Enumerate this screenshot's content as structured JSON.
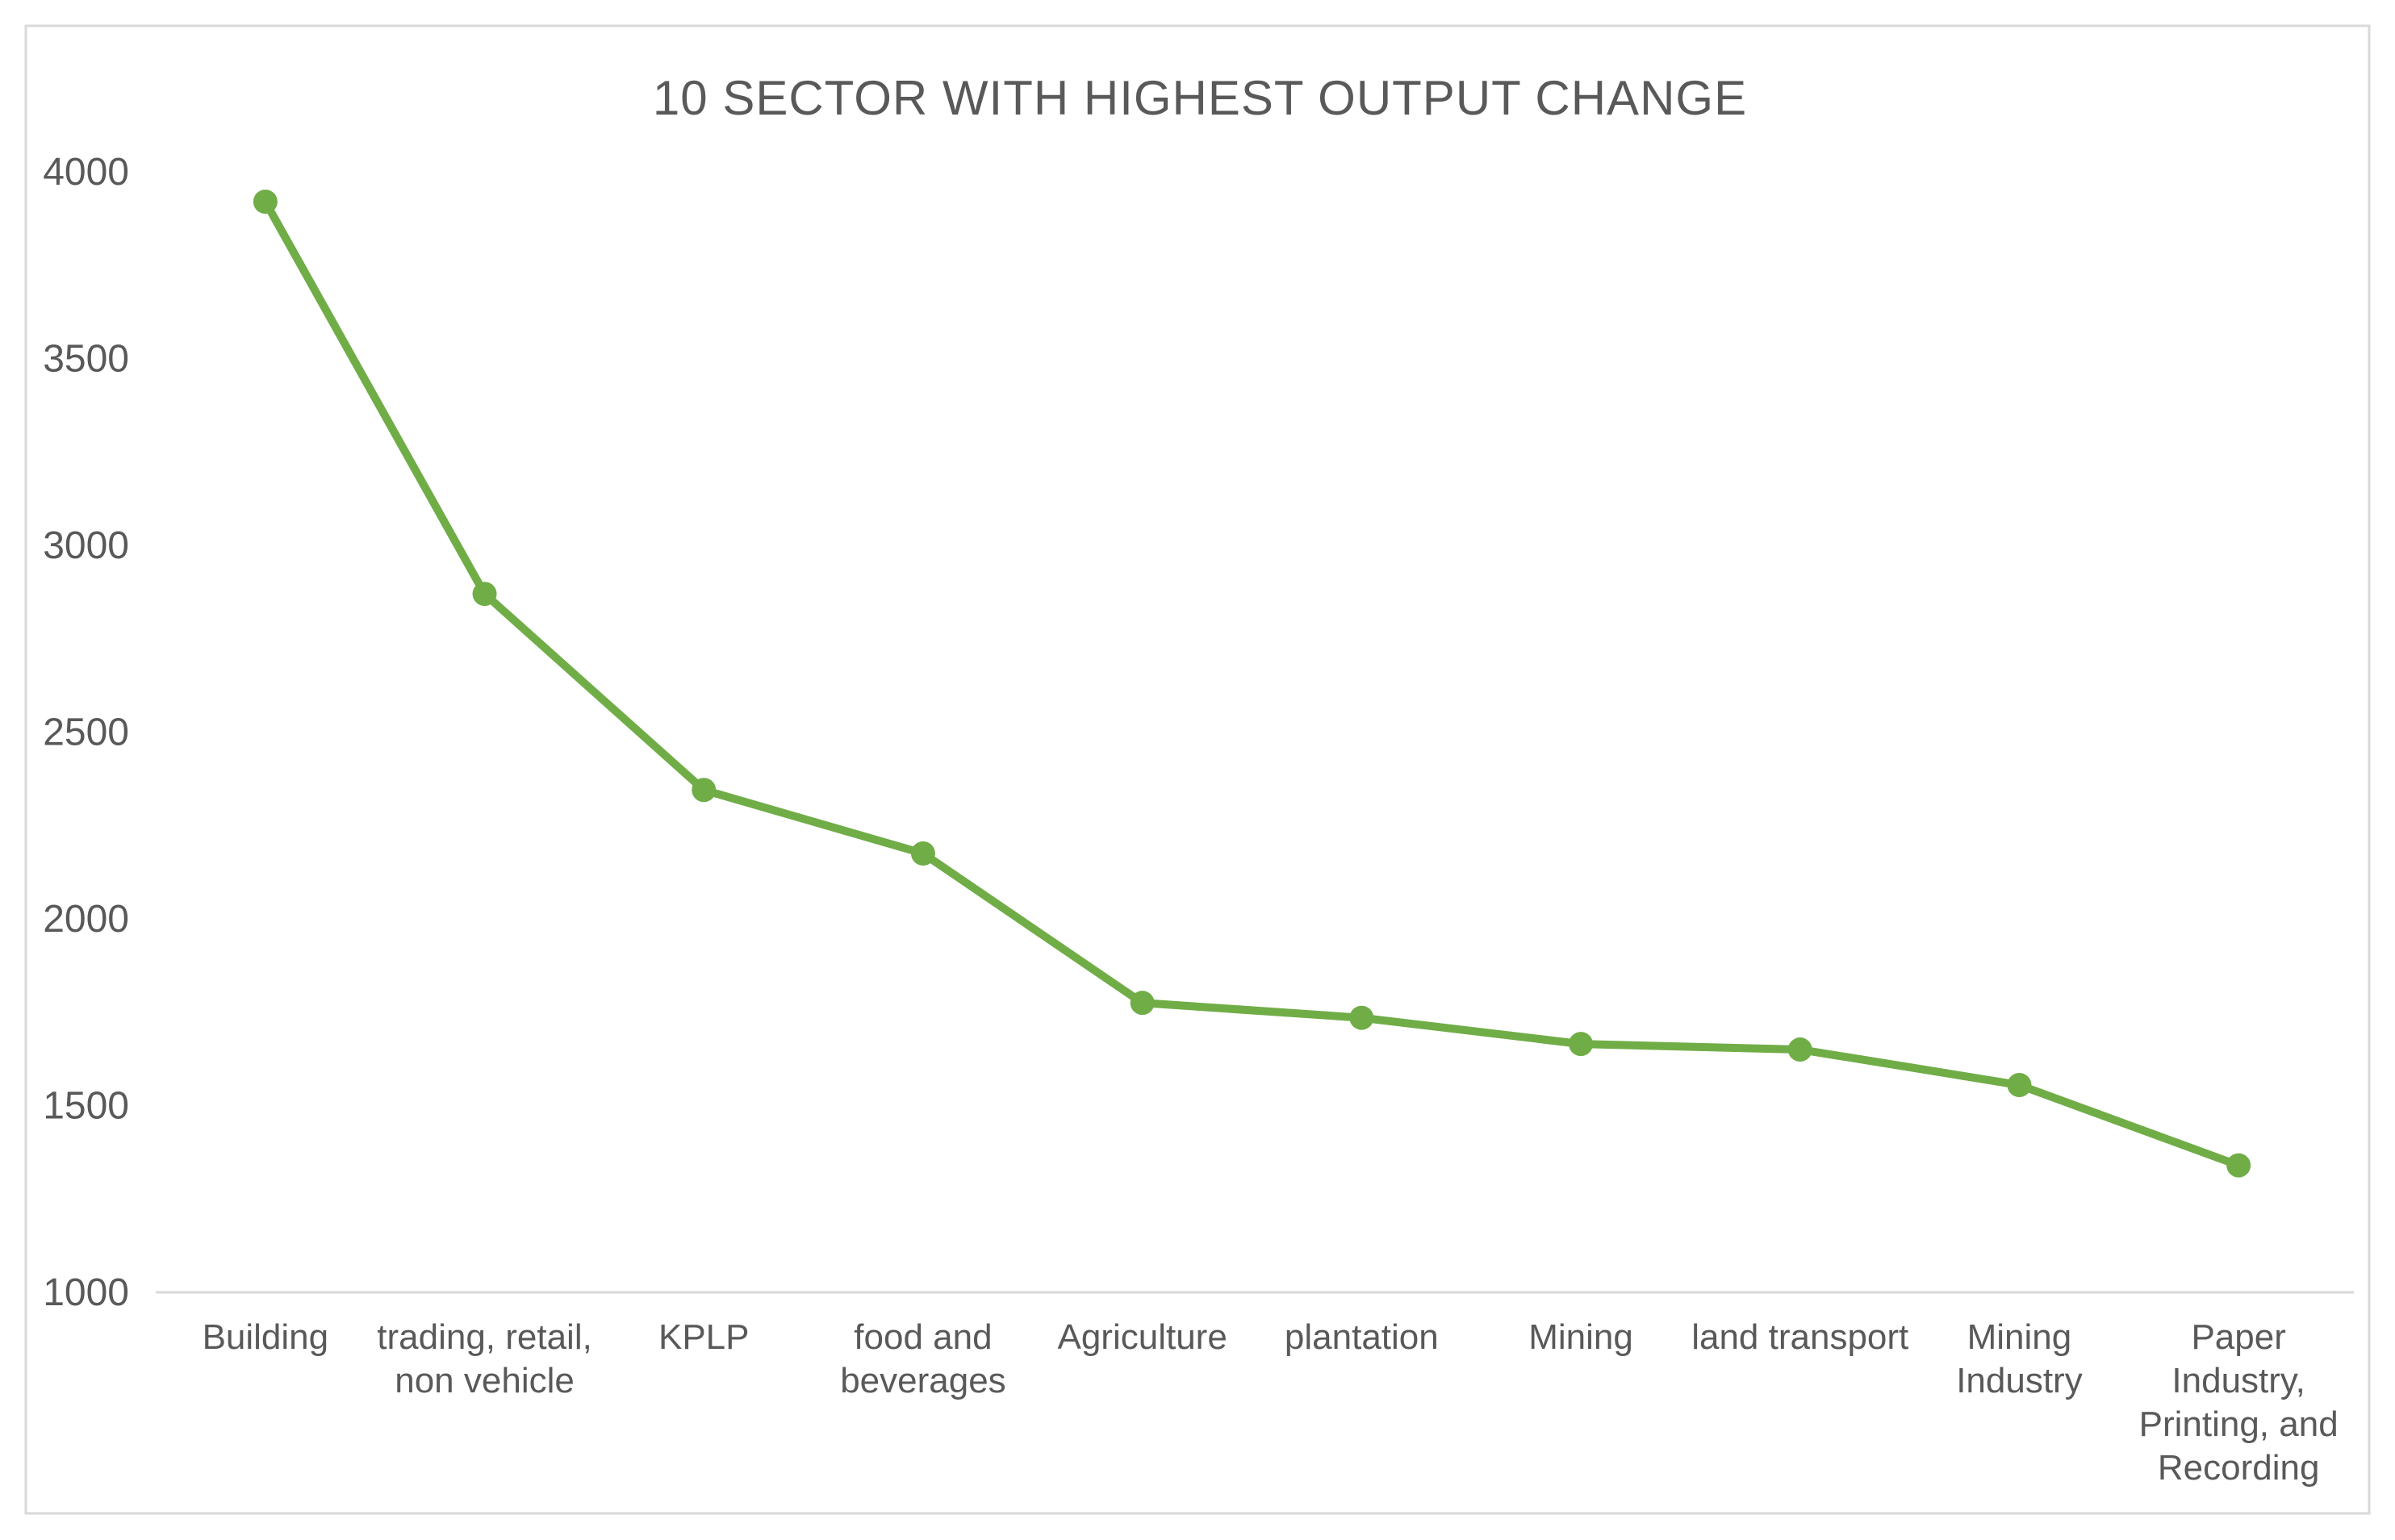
{
  "chart_data": {
    "type": "line",
    "title": "10 SECTOR WITH HIGHEST OUTPUT CHANGE",
    "categories": [
      "Building",
      "trading, retail, non vehicle",
      "KPLP",
      "food and beverages",
      "Agriculture",
      "plantation",
      "Mining",
      "land transport",
      "Mining Industry",
      "Paper Industry, Printing, and Recording"
    ],
    "category_label_lines": [
      [
        "Building"
      ],
      [
        "trading, retail,",
        "non vehicle"
      ],
      [
        "KPLP"
      ],
      [
        "food and",
        "beverages"
      ],
      [
        "Agriculture"
      ],
      [
        "plantation"
      ],
      [
        "Mining"
      ],
      [
        "land transport"
      ],
      [
        "Mining",
        "Industry"
      ],
      [
        "Paper",
        "Industry,",
        "Printing, and",
        "Recording"
      ]
    ],
    "series": [
      {
        "name": "output change",
        "values": [
          3920,
          2870,
          2345,
          2175,
          1775,
          1735,
          1665,
          1650,
          1555,
          1340
        ]
      }
    ],
    "xlabel": "",
    "ylabel": "",
    "ylim": [
      1000,
      4000
    ],
    "yticks": [
      4000,
      3500,
      3000,
      2500,
      2000,
      1500,
      1000
    ],
    "grid": false,
    "legend": false,
    "marker": "circle",
    "colors": {
      "line": "#70ad47",
      "marker": "#70ad47",
      "text": "#595959",
      "axis_line": "#d9d9d9",
      "chart_border": "#d9d9d9",
      "background": "#ffffff"
    }
  }
}
